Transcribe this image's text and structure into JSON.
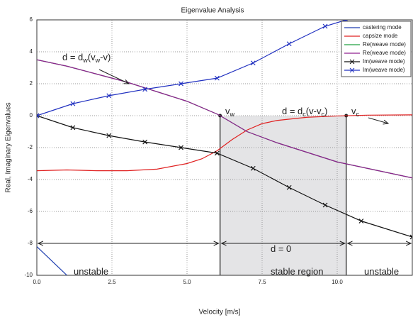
{
  "chart_data": {
    "type": "line",
    "title": "Eigenvalue Analysis",
    "xlabel": "Velocity [m/s]",
    "ylabel": "Real, Imaginary Eigenvalues",
    "xlim": [
      0,
      12.5
    ],
    "ylim": [
      -10,
      6
    ],
    "xticks": [
      {
        "value": 0,
        "label": "0.0"
      },
      {
        "value": 2.5,
        "label": "2.5"
      },
      {
        "value": 5,
        "label": "5.0"
      },
      {
        "value": 7.5,
        "label": "7.5"
      },
      {
        "value": 10,
        "label": "10.0"
      }
    ],
    "yticks": [
      6,
      4,
      2,
      0,
      -2,
      -4,
      -6,
      -8,
      -10
    ],
    "grid": true,
    "legend": "top-right",
    "series": [
      {
        "name": "castering mode",
        "color": "#1f3fb0",
        "x": [
          0,
          1
        ],
        "values": [
          -8.2,
          -10
        ]
      },
      {
        "name": "capsize mode",
        "color": "#e02020",
        "x": [
          0,
          1,
          2,
          3,
          4,
          5,
          5.5,
          6,
          6.5,
          7,
          7.5,
          8,
          9,
          10,
          11,
          12.5
        ],
        "values": [
          -3.45,
          -3.4,
          -3.45,
          -3.45,
          -3.35,
          -3.0,
          -2.7,
          -2.2,
          -1.5,
          -0.9,
          -0.5,
          -0.3,
          -0.1,
          -0.02,
          0.03,
          0.05
        ]
      },
      {
        "name": "Re(weave mode)",
        "color": "#20a040",
        "x": [
          0,
          1,
          2,
          3,
          4,
          5,
          6,
          6.1,
          7,
          8,
          9,
          10,
          11,
          12,
          12.5
        ],
        "values": [
          3.5,
          3.1,
          2.6,
          2.1,
          1.5,
          0.9,
          0.1,
          0,
          -1.0,
          -1.7,
          -2.3,
          -2.9,
          -3.3,
          -3.7,
          -3.9
        ]
      },
      {
        "name": "Re(weave mode)",
        "color": "#902090",
        "x": [
          0,
          1,
          2,
          3,
          4,
          5,
          6,
          6.1,
          7,
          8,
          9,
          10,
          11,
          12,
          12.5
        ],
        "values": [
          3.5,
          3.1,
          2.6,
          2.1,
          1.5,
          0.9,
          0.1,
          0,
          -1.0,
          -1.7,
          -2.3,
          -2.9,
          -3.3,
          -3.7,
          -3.9
        ]
      },
      {
        "name": "Im(weave mode)",
        "color": "#111111",
        "marker": "x",
        "x": [
          0,
          1.2,
          2.4,
          3.6,
          4.8,
          6.0,
          7.2,
          8.4,
          9.6,
          10.8,
          12.5
        ],
        "values": [
          0,
          -0.75,
          -1.25,
          -1.65,
          -2.0,
          -2.35,
          -3.3,
          -4.5,
          -5.6,
          -6.6,
          -7.6
        ]
      },
      {
        "name": "Im(weave mode)",
        "color": "#2030c0",
        "marker": "x",
        "x": [
          0,
          1.2,
          2.4,
          3.6,
          4.8,
          6.0,
          7.2,
          8.4,
          9.6,
          10.3
        ],
        "values": [
          0,
          0.75,
          1.25,
          1.65,
          2.0,
          2.35,
          3.3,
          4.5,
          5.6,
          6.0
        ]
      }
    ],
    "region": {
      "from": 6.1,
      "to": 10.3
    },
    "annotations": [
      {
        "text": [
          "d = d",
          "w",
          "(v",
          "w",
          "-v)"
        ]
      },
      {
        "text": [
          "d = d",
          "c",
          "(v-v",
          "c",
          ")"
        ]
      },
      {
        "text": [
          "v",
          "w"
        ]
      },
      {
        "text": [
          "v",
          "c"
        ]
      },
      {
        "text": [
          "d = 0"
        ]
      },
      {
        "text": [
          "unstable"
        ]
      },
      {
        "text": [
          "stable region"
        ]
      },
      {
        "text": [
          "unstable"
        ]
      }
    ]
  }
}
